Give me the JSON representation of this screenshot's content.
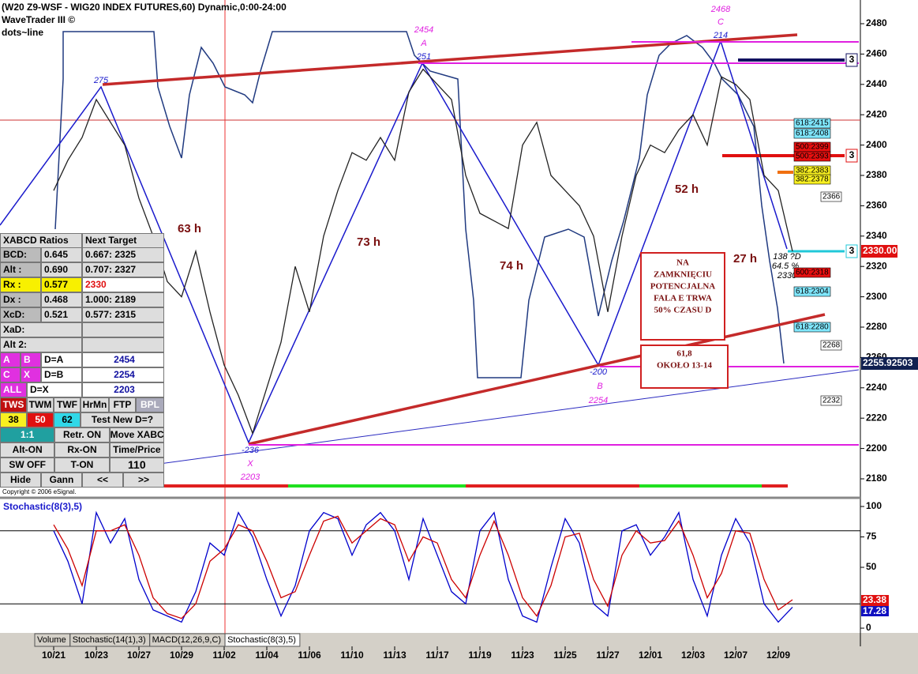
{
  "header": {
    "title": "(W20 Z9-WSF - WIG20 INDEX FUTURES,60) Dynamic,0:00-24:00",
    "plugin": "WaveTrader III ©",
    "mode": "dots~line",
    "copyright": "Copyright © 2006 eSignal."
  },
  "chart_data": [
    {
      "type": "line",
      "title": "(W20 Z9-WSF - WIG20 INDEX FUTURES,60) Dynamic,0:00-24:00",
      "categories": [
        "10/21",
        null,
        null,
        "10/23",
        null,
        null,
        "10/27",
        null,
        null,
        "10/29",
        null,
        null,
        "11/02",
        null,
        null,
        "11/04",
        null,
        null,
        "11/06",
        null,
        null,
        "11/10",
        null,
        null,
        "11/13",
        null,
        null,
        "11/17",
        null,
        null,
        "11/19",
        null,
        null,
        "11/23",
        null,
        null,
        "11/25",
        null,
        null,
        "11/27",
        null,
        null,
        "12/01",
        null,
        null,
        "12/03",
        null,
        null,
        "12/07",
        null,
        null,
        "12/09",
        null
      ],
      "series": [
        {
          "color": "#222222",
          "values": [
            2370,
            2390,
            2405,
            2430,
            2415,
            2400,
            2365,
            2340,
            2310,
            2300,
            2330,
            2290,
            2255,
            2235,
            2210,
            2240,
            2270,
            2320,
            2290,
            2340,
            2370,
            2395,
            2390,
            2405,
            2390,
            2435,
            2450,
            2440,
            2430,
            2380,
            2355,
            2350,
            2345,
            2400,
            2415,
            2380,
            2370,
            2360,
            2340,
            2290,
            2340,
            2380,
            2400,
            2395,
            2410,
            2420,
            2400,
            2445,
            2440,
            2430,
            2380,
            2370,
            2330
          ]
        }
      ],
      "ylim": [
        2170,
        2490
      ],
      "yticks": [
        2180,
        2200,
        2220,
        2240,
        2260,
        2280,
        2300,
        2320,
        2340,
        2360,
        2380,
        2400,
        2420,
        2440,
        2460,
        2480
      ],
      "last_price": "2255.92503",
      "marker_price": "2330.00",
      "annotations": [
        "275",
        "2454",
        "A",
        "251",
        "2468",
        "C",
        "214",
        "63 h",
        "73 h",
        "74 h",
        "52 h",
        "27 h",
        "-200",
        "B",
        "2254",
        "-236",
        "X",
        "2203",
        "138 ?D",
        "64.5 %",
        "2330"
      ],
      "levels": [
        "618:2415",
        "618:2408",
        "500:2399",
        "500:2393",
        "382:2383",
        "382:2378",
        "600:2318",
        "618:2304",
        "618:2280",
        "2366",
        "2268",
        "2232"
      ],
      "markers": [
        "3",
        "3",
        "3"
      ],
      "notes": [
        [
          "NA",
          "ZAMKNIĘCIU",
          "POTENCJALNA",
          "FALA E TRWA",
          "50% CZASU D"
        ],
        [
          "61,8",
          "OKOŁO 13-14"
        ]
      ]
    },
    {
      "type": "line",
      "title": "Stochastic(8(3),5)",
      "series": [
        {
          "color": "#0000cc",
          "values": [
            80,
            55,
            20,
            95,
            70,
            90,
            40,
            15,
            10,
            5,
            30,
            70,
            60,
            95,
            75,
            40,
            10,
            35,
            80,
            95,
            90,
            60,
            85,
            95,
            80,
            40,
            90,
            60,
            30,
            20,
            80,
            95,
            40,
            10,
            5,
            50,
            90,
            70,
            20,
            10,
            80,
            85,
            60,
            75,
            95,
            40,
            10,
            60,
            90,
            70,
            20,
            5,
            17.28
          ]
        },
        {
          "color": "#cc0000",
          "values": [
            85,
            65,
            35,
            80,
            80,
            85,
            60,
            25,
            12,
            8,
            20,
            55,
            65,
            85,
            80,
            55,
            25,
            30,
            60,
            88,
            92,
            70,
            80,
            90,
            85,
            55,
            75,
            70,
            40,
            25,
            60,
            88,
            60,
            25,
            10,
            35,
            75,
            78,
            40,
            18,
            60,
            80,
            70,
            72,
            88,
            60,
            25,
            45,
            80,
            78,
            40,
            15,
            23.38
          ]
        }
      ],
      "ylim": [
        0,
        100
      ],
      "yticks": [
        0,
        50,
        75,
        100
      ],
      "reference_lines": [
        20,
        80
      ],
      "last_values": [
        "23.38",
        "17.28"
      ]
    }
  ],
  "panel": {
    "rows": [
      [
        "XABCD Ratios",
        "Next Target"
      ],
      [
        "BCD:",
        "0.645",
        "0.667: 2325"
      ],
      [
        "Alt :",
        "0.690",
        "0.707: 2327"
      ],
      [
        "Rx  :",
        "0.577",
        "2330"
      ],
      [
        "Dx  :",
        "0.468",
        "1.000: 2189"
      ],
      [
        "XcD:",
        "0.521",
        "0.577: 2315"
      ],
      [
        "XaD:",
        ""
      ],
      [
        "Alt 2:",
        ""
      ],
      [
        "A",
        "B",
        "D=A",
        "2454"
      ],
      [
        "C",
        "X",
        "D=B",
        "2254"
      ],
      [
        "ALL",
        "D=X",
        "2203"
      ],
      [
        "TWS",
        "TWM",
        "TWF",
        "HrMn",
        "FTP",
        "BPL"
      ],
      [
        "38",
        "50",
        "62",
        "Test New D=?"
      ],
      [
        "1:1",
        "Retr. ON",
        "Move XABCD"
      ],
      [
        "Alt-ON",
        "Rx-ON",
        "Time/Price"
      ],
      [
        "SW OFF",
        "T-ON",
        "110"
      ],
      [
        "Hide",
        "Gann",
        "<<",
        ">>"
      ]
    ]
  },
  "tabs": [
    "Volume",
    "Stochastic(14(1),3)",
    "MACD(12,26,9,C)",
    "Stochastic(8(3),5)"
  ]
}
